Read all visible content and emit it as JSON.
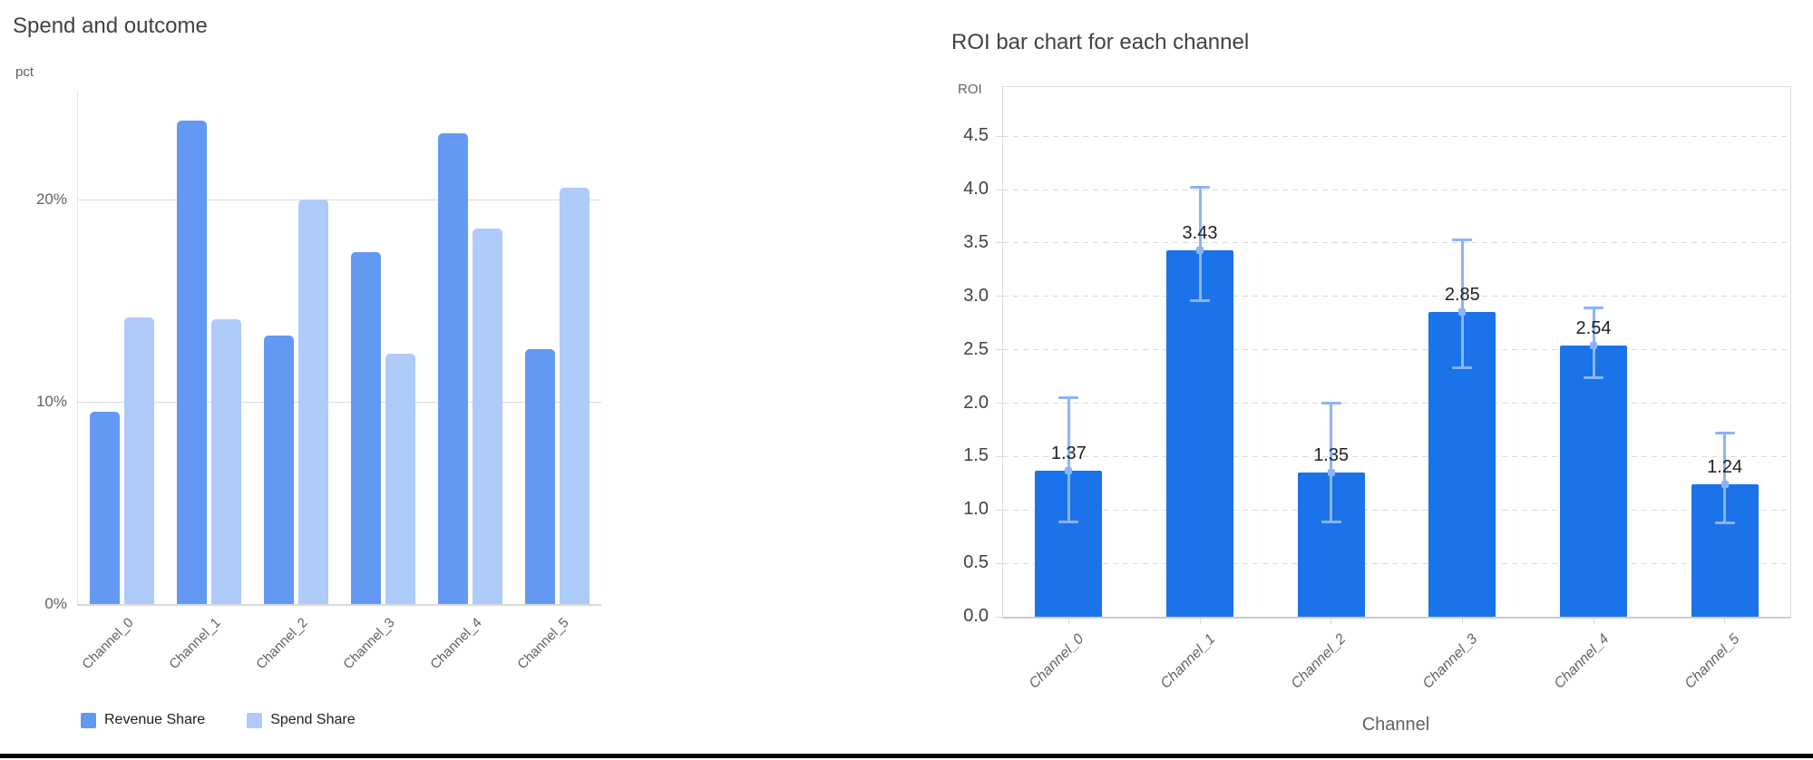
{
  "page": {
    "background_color": "#ffffff",
    "bottom_rule_color": "#000000"
  },
  "chart_data": [
    {
      "type": "bar",
      "title": "Spend and outcome",
      "ylabel": "pct",
      "xlabel": "",
      "categories": [
        "Channel_0",
        "Channel_1",
        "Channel_2",
        "Channel_3",
        "Channel_4",
        "Channel_5"
      ],
      "series": [
        {
          "name": "Revenue Share",
          "color": "#6499F3",
          "values": [
            9.5,
            23.9,
            13.3,
            17.4,
            23.3,
            12.6
          ]
        },
        {
          "name": "Spend Share",
          "color": "#AECBFA",
          "values": [
            14.2,
            14.1,
            20.0,
            12.4,
            18.6,
            20.6
          ]
        }
      ],
      "y_ticks": [
        {
          "value": 0,
          "label": "0%"
        },
        {
          "value": 10,
          "label": "10%"
        },
        {
          "value": 20,
          "label": "20%"
        }
      ],
      "ylim": [
        0,
        25.4
      ],
      "value_format": "percent",
      "grid": "solid-horizontal",
      "legend_position": "bottom-left"
    },
    {
      "type": "bar",
      "title": "ROI bar chart for each channel",
      "ylabel": "ROI",
      "xlabel": "Channel",
      "categories": [
        "Channel_0",
        "Channel_1",
        "Channel_2",
        "Channel_3",
        "Channel_4",
        "Channel_5"
      ],
      "values": [
        1.37,
        3.43,
        1.35,
        2.85,
        2.54,
        1.24
      ],
      "bar_labels": [
        "1.37",
        "3.43",
        "1.35",
        "2.85",
        "2.54",
        "1.24"
      ],
      "error_low": [
        0.89,
        2.96,
        0.89,
        2.33,
        2.24,
        0.88
      ],
      "error_high": [
        2.05,
        4.02,
        2.0,
        3.53,
        2.89,
        1.72
      ],
      "bar_color": "#1A73E8",
      "error_bar_color": "#8AB4F8",
      "y_ticks": [
        {
          "value": 0.0,
          "label": "0.0"
        },
        {
          "value": 0.5,
          "label": "0.5"
        },
        {
          "value": 1.0,
          "label": "1.0"
        },
        {
          "value": 1.5,
          "label": "1.5"
        },
        {
          "value": 2.0,
          "label": "2.0"
        },
        {
          "value": 2.5,
          "label": "2.5"
        },
        {
          "value": 3.0,
          "label": "3.0"
        },
        {
          "value": 3.5,
          "label": "3.5"
        },
        {
          "value": 4.0,
          "label": "4.0"
        },
        {
          "value": 4.5,
          "label": "4.5"
        }
      ],
      "ylim": [
        0,
        4.96
      ],
      "grid": "dashed-horizontal",
      "legend_position": "none"
    }
  ]
}
